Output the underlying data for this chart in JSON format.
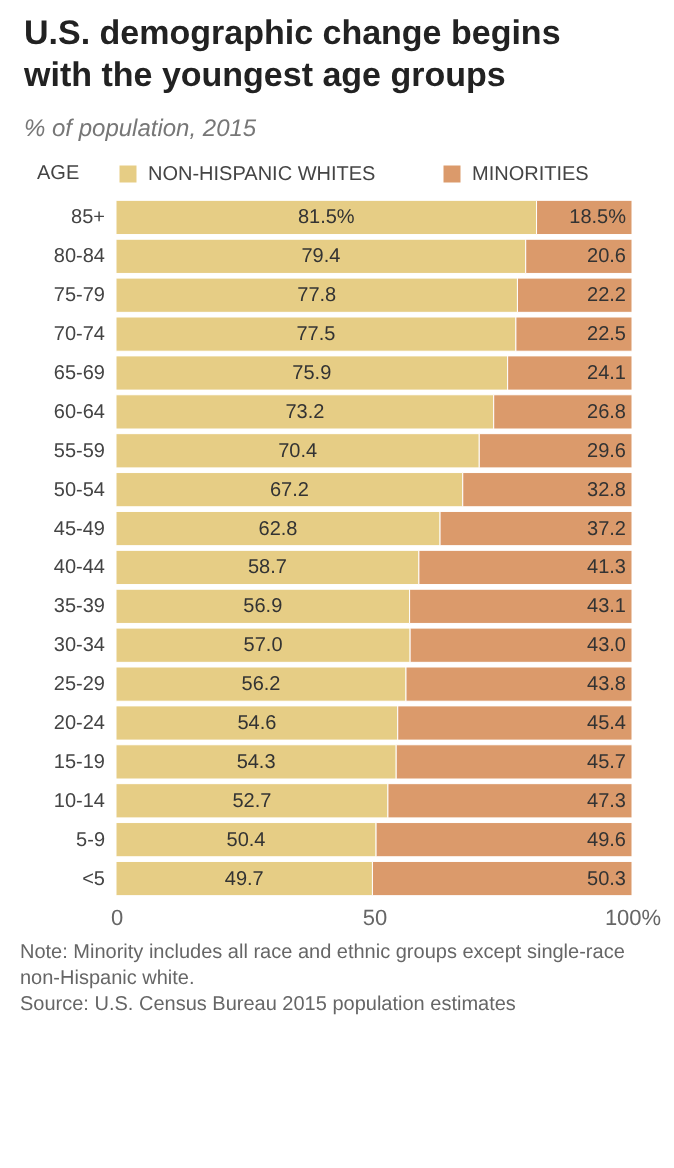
{
  "chart_data": {
    "type": "bar",
    "orientation": "horizontal",
    "stacked": true,
    "title": "U.S. demographic change begins with the youngest age groups",
    "subtitle": "% of population, 2015",
    "ylabel": "AGE",
    "categories": [
      "85+",
      "80-84",
      "75-79",
      "70-74",
      "65-69",
      "60-64",
      "55-59",
      "50-54",
      "45-49",
      "40-44",
      "35-39",
      "30-34",
      "25-29",
      "20-24",
      "15-19",
      "10-14",
      "5-9",
      "<5"
    ],
    "series": [
      {
        "name": "NON-HISPANIC WHITES",
        "color": "#e6cd85",
        "values": [
          81.5,
          79.4,
          77.8,
          77.5,
          75.9,
          73.2,
          70.4,
          67.2,
          62.8,
          58.7,
          56.9,
          57.0,
          56.2,
          54.6,
          54.3,
          52.7,
          50.4,
          49.7
        ],
        "value_labels": [
          "81.5%",
          "79.4",
          "77.8",
          "77.5",
          "75.9",
          "73.2",
          "70.4",
          "67.2",
          "62.8",
          "58.7",
          "56.9",
          "57.0",
          "56.2",
          "54.6",
          "54.3",
          "52.7",
          "50.4",
          "49.7"
        ]
      },
      {
        "name": "MINORITIES",
        "color": "#db9a6b",
        "values": [
          18.5,
          20.6,
          22.2,
          22.5,
          24.1,
          26.8,
          29.6,
          32.8,
          37.2,
          41.3,
          43.1,
          43.0,
          43.8,
          45.4,
          45.7,
          47.3,
          49.6,
          50.3
        ],
        "value_labels": [
          "18.5%",
          "20.6",
          "22.2",
          "22.5",
          "24.1",
          "26.8",
          "29.6",
          "32.8",
          "37.2",
          "41.3",
          "43.1",
          "43.0",
          "43.8",
          "45.4",
          "45.7",
          "47.3",
          "49.6",
          "50.3"
        ]
      }
    ],
    "xlim": [
      0,
      100
    ],
    "xticks": [
      0,
      50,
      {
        "value": 100,
        "label": "100%"
      }
    ],
    "grid": false,
    "legend": "top",
    "annotations": [
      "Note: Minority includes all race and ethnic groups except single-race non-Hispanic white.",
      "Source: U.S. Census Bureau 2015 population estimates"
    ]
  }
}
